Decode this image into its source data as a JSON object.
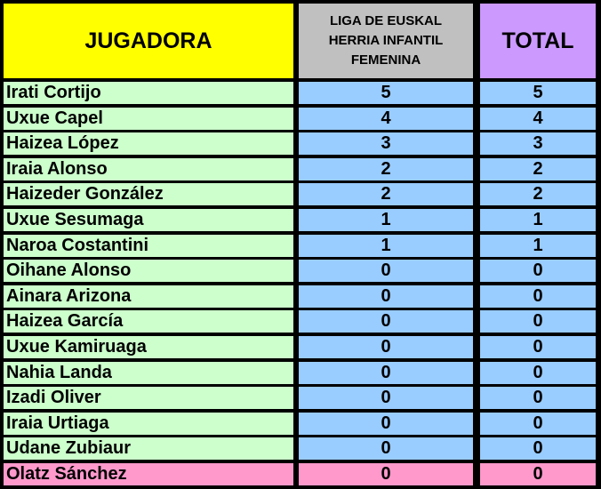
{
  "header": {
    "player": "JUGADORA",
    "league": "LIGA DE EUSKAL HERRIA INFANTIL FEMENINA",
    "total": "TOTAL"
  },
  "rows": [
    {
      "name": "Irati Cortijo",
      "league": "5",
      "total": "5"
    },
    {
      "name": "Uxue Capel",
      "league": "4",
      "total": "4"
    },
    {
      "name": "Haizea López",
      "league": "3",
      "total": "3"
    },
    {
      "name": "Iraia Alonso",
      "league": "2",
      "total": "2"
    },
    {
      "name": "Haizeder González",
      "league": "2",
      "total": "2"
    },
    {
      "name": "Uxue Sesumaga",
      "league": "1",
      "total": "1"
    },
    {
      "name": "Naroa Costantini",
      "league": "1",
      "total": "1"
    },
    {
      "name": "Oihane Alonso",
      "league": "0",
      "total": "0"
    },
    {
      "name": "Ainara Arizona",
      "league": "0",
      "total": "0"
    },
    {
      "name": "Haizea García",
      "league": "0",
      "total": "0"
    },
    {
      "name": "Uxue Kamiruaga",
      "league": "0",
      "total": "0"
    },
    {
      "name": "Nahia Landa",
      "league": "0",
      "total": "0"
    },
    {
      "name": "Izadi Oliver",
      "league": "0",
      "total": "0"
    },
    {
      "name": "Iraia Urtiaga",
      "league": "0",
      "total": "0"
    },
    {
      "name": "Udane Zubiaur",
      "league": "0",
      "total": "0"
    },
    {
      "name": "Olatz Sánchez",
      "league": "0",
      "total": "0",
      "highlight": true
    }
  ],
  "colors": {
    "player_header": "#ffff00",
    "league_header": "#c0c0c0",
    "total_header": "#cc99ff",
    "name_cell": "#ccffcc",
    "value_cell": "#99ccff",
    "highlight_row": "#ff99cc"
  }
}
